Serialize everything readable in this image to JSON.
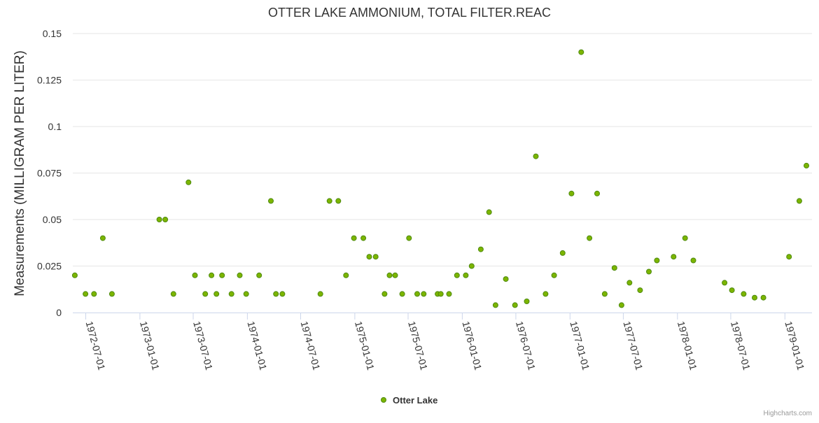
{
  "chart_data": {
    "type": "scatter",
    "title": "OTTER LAKE AMMONIUM, TOTAL FILTER.REAC",
    "ylabel": "Measurements (MILLIGRAM PER LITER)",
    "xlabel": "",
    "ylim": [
      0,
      0.15
    ],
    "y_ticks": [
      "0",
      "0.025",
      "0.05",
      "0.075",
      "0.1",
      "0.125",
      "0.15"
    ],
    "x_ticks": [
      "1972-07-01",
      "1973-01-01",
      "1973-07-01",
      "1974-01-01",
      "1974-07-01",
      "1975-01-01",
      "1975-07-01",
      "1976-01-01",
      "1976-07-01",
      "1977-01-01",
      "1977-07-01",
      "1978-01-01",
      "1978-07-01",
      "1979-01-01"
    ],
    "grid": "horizontal",
    "legend_position": "bottom-center",
    "color": "#7cb500",
    "series": [
      {
        "name": "Otter Lake",
        "points": [
          [
            "1972-05-25",
            0.02
          ],
          [
            "1972-06-30",
            0.01
          ],
          [
            "1972-07-29",
            0.01
          ],
          [
            "1972-08-28",
            0.04
          ],
          [
            "1972-09-28",
            0.01
          ],
          [
            "1973-03-08",
            0.05
          ],
          [
            "1973-03-28",
            0.05
          ],
          [
            "1973-04-25",
            0.01
          ],
          [
            "1973-06-15",
            0.07
          ],
          [
            "1973-07-07",
            0.02
          ],
          [
            "1973-08-11",
            0.01
          ],
          [
            "1973-09-01",
            0.02
          ],
          [
            "1973-09-18",
            0.01
          ],
          [
            "1973-10-07",
            0.02
          ],
          [
            "1973-11-08",
            0.01
          ],
          [
            "1973-12-06",
            0.02
          ],
          [
            "1973-12-28",
            0.01
          ],
          [
            "1974-02-10",
            0.02
          ],
          [
            "1974-03-22",
            0.06
          ],
          [
            "1974-04-08",
            0.01
          ],
          [
            "1974-04-30",
            0.01
          ],
          [
            "1974-09-06",
            0.01
          ],
          [
            "1974-10-07",
            0.06
          ],
          [
            "1974-11-06",
            0.06
          ],
          [
            "1974-12-02",
            0.02
          ],
          [
            "1974-12-29",
            0.04
          ],
          [
            "1975-01-30",
            0.04
          ],
          [
            "1975-02-19",
            0.03
          ],
          [
            "1975-03-13",
            0.03
          ],
          [
            "1975-04-12",
            0.01
          ],
          [
            "1975-04-29",
            0.02
          ],
          [
            "1975-05-18",
            0.02
          ],
          [
            "1975-06-11",
            0.01
          ],
          [
            "1975-07-04",
            0.04
          ],
          [
            "1975-08-01",
            0.01
          ],
          [
            "1975-08-23",
            0.01
          ],
          [
            "1975-10-09",
            0.01
          ],
          [
            "1975-10-20",
            0.01
          ],
          [
            "1975-11-17",
            0.01
          ],
          [
            "1975-12-14",
            0.02
          ],
          [
            "1976-01-13",
            0.02
          ],
          [
            "1976-02-02",
            0.025
          ],
          [
            "1976-03-04",
            0.034
          ],
          [
            "1976-04-01",
            0.054
          ],
          [
            "1976-04-23",
            0.004
          ],
          [
            "1976-05-28",
            0.018
          ],
          [
            "1976-06-28",
            0.004
          ],
          [
            "1976-08-07",
            0.006
          ],
          [
            "1976-09-07",
            0.084
          ],
          [
            "1976-10-10",
            0.01
          ],
          [
            "1976-11-08",
            0.02
          ],
          [
            "1976-12-07",
            0.032
          ],
          [
            "1977-01-06",
            0.064
          ],
          [
            "1977-02-08",
            0.14
          ],
          [
            "1977-03-08",
            0.04
          ],
          [
            "1977-04-03",
            0.064
          ],
          [
            "1977-04-29",
            0.01
          ],
          [
            "1977-06-01",
            0.024
          ],
          [
            "1977-06-25",
            0.004
          ],
          [
            "1977-07-22",
            0.016
          ],
          [
            "1977-08-27",
            0.012
          ],
          [
            "1977-09-26",
            0.022
          ],
          [
            "1977-10-23",
            0.028
          ],
          [
            "1977-12-19",
            0.03
          ],
          [
            "1978-01-27",
            0.04
          ],
          [
            "1978-02-24",
            0.028
          ],
          [
            "1978-06-10",
            0.016
          ],
          [
            "1978-07-05",
            0.012
          ],
          [
            "1978-08-14",
            0.01
          ],
          [
            "1978-09-20",
            0.008
          ],
          [
            "1978-10-20",
            0.008
          ],
          [
            "1979-01-15",
            0.03
          ],
          [
            "1979-02-19",
            0.06
          ],
          [
            "1979-03-15",
            0.079
          ]
        ]
      }
    ]
  },
  "credits": "Highcharts.com"
}
